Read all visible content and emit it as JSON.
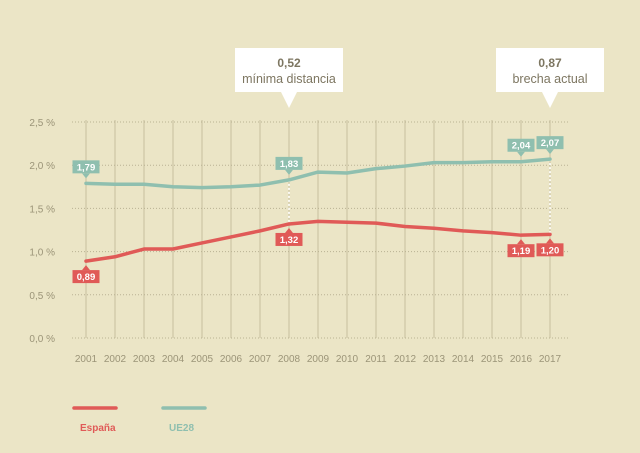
{
  "chart_data": {
    "type": "line",
    "categories": [
      "2001",
      "2002",
      "2003",
      "2004",
      "2005",
      "2006",
      "2007",
      "2008",
      "2009",
      "2010",
      "2011",
      "2012",
      "2013",
      "2014",
      "2015",
      "2016",
      "2017"
    ],
    "ylim": [
      0,
      2.5
    ],
    "y_ticks": [
      "0,0 %",
      "0,5 %",
      "1,0 %",
      "1,5 %",
      "2,0 %",
      "2,5 %"
    ],
    "grid": "horizontal dotted, vertical solid",
    "series": [
      {
        "name": "España",
        "color": "#e05a57",
        "values": [
          0.89,
          0.94,
          1.03,
          1.03,
          1.1,
          1.17,
          1.24,
          1.32,
          1.35,
          1.34,
          1.33,
          1.29,
          1.27,
          1.24,
          1.22,
          1.19,
          1.2
        ],
        "point_labels": [
          {
            "index": 0,
            "text": "0,89"
          },
          {
            "index": 7,
            "text": "1,32"
          },
          {
            "index": 15,
            "text": "1,19"
          },
          {
            "index": 16,
            "text": "1,20"
          }
        ]
      },
      {
        "name": "UE28",
        "color": "#8fbfaf",
        "values": [
          1.79,
          1.78,
          1.78,
          1.75,
          1.74,
          1.75,
          1.77,
          1.83,
          1.92,
          1.91,
          1.96,
          1.99,
          2.03,
          2.03,
          2.04,
          2.04,
          2.07
        ],
        "point_labels": [
          {
            "index": 0,
            "text": "1,79"
          },
          {
            "index": 7,
            "text": "1,83"
          },
          {
            "index": 15,
            "text": "2,04"
          },
          {
            "index": 16,
            "text": "2,07"
          }
        ]
      }
    ],
    "annotations": [
      {
        "index": 7,
        "value": "0,52",
        "text": "mínima distancia"
      },
      {
        "index": 16,
        "value": "0,87",
        "text": "brecha actual"
      }
    ],
    "legend_placement": "bottom-left"
  }
}
